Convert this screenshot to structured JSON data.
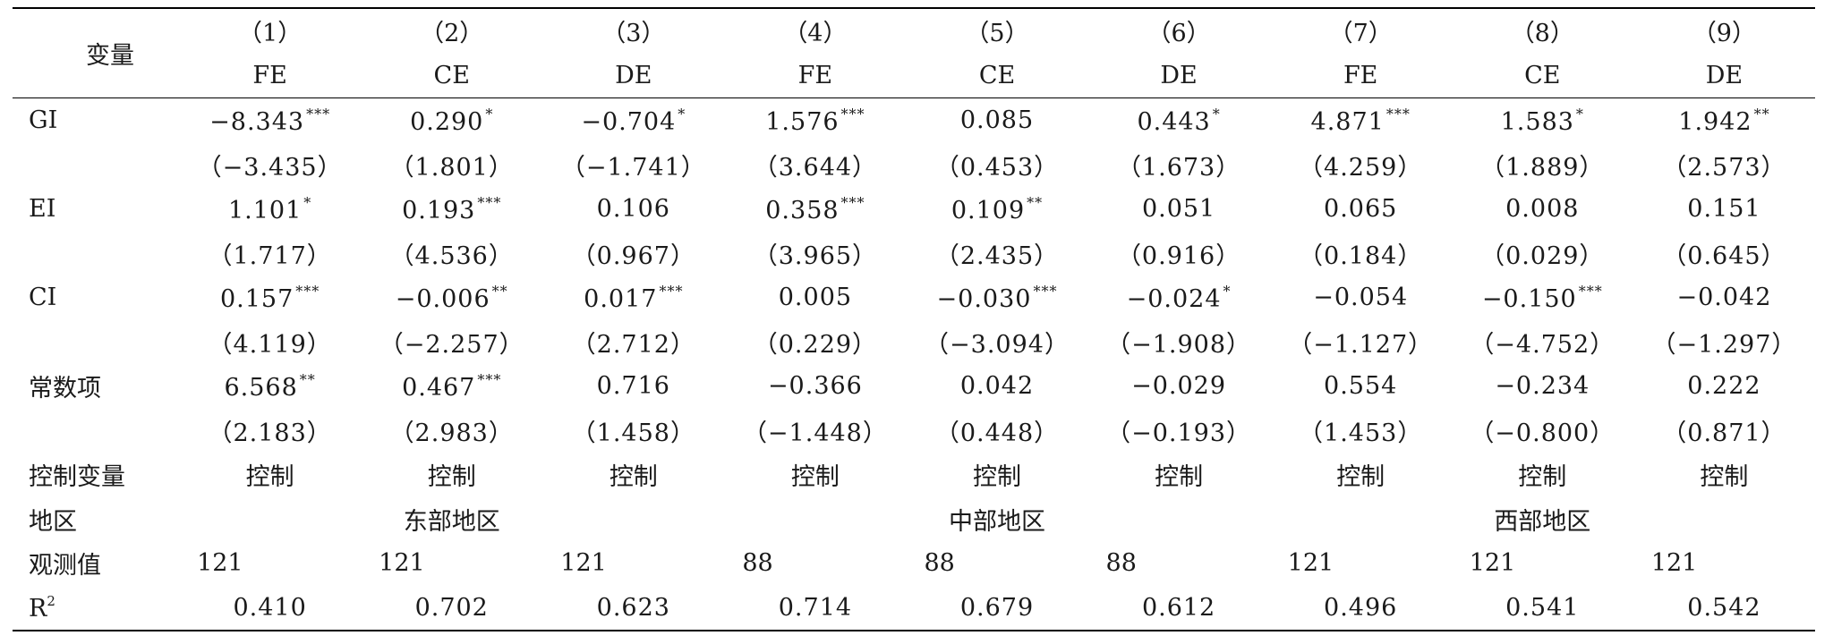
{
  "header": {
    "var_label": "变量",
    "columns": [
      {
        "num": "（1）",
        "type": "FE"
      },
      {
        "num": "（2）",
        "type": "CE"
      },
      {
        "num": "（3）",
        "type": "DE"
      },
      {
        "num": "（4）",
        "type": "FE"
      },
      {
        "num": "（5）",
        "type": "CE"
      },
      {
        "num": "（6）",
        "type": "DE"
      },
      {
        "num": "（7）",
        "type": "FE"
      },
      {
        "num": "（8）",
        "type": "CE"
      },
      {
        "num": "（9）",
        "type": "DE"
      }
    ]
  },
  "rows": [
    {
      "name": "GI",
      "coef": [
        {
          "v": "−8.343",
          "s": "***"
        },
        {
          "v": "0.290",
          "s": "*"
        },
        {
          "v": "−0.704",
          "s": "*"
        },
        {
          "v": "1.576",
          "s": "***"
        },
        {
          "v": "0.085",
          "s": ""
        },
        {
          "v": "0.443",
          "s": "*"
        },
        {
          "v": "4.871",
          "s": "***"
        },
        {
          "v": "1.583",
          "s": "*"
        },
        {
          "v": "1.942",
          "s": "**"
        }
      ],
      "t": [
        "（−3.435）",
        "（1.801）",
        "（−1.741）",
        "（3.644）",
        "（0.453）",
        "（1.673）",
        "（4.259）",
        "（1.889）",
        "（2.573）"
      ]
    },
    {
      "name": "EI",
      "coef": [
        {
          "v": "1.101",
          "s": "*"
        },
        {
          "v": "0.193",
          "s": "***"
        },
        {
          "v": "0.106",
          "s": ""
        },
        {
          "v": "0.358",
          "s": "***"
        },
        {
          "v": "0.109",
          "s": "**"
        },
        {
          "v": "0.051",
          "s": ""
        },
        {
          "v": "0.065",
          "s": ""
        },
        {
          "v": "0.008",
          "s": ""
        },
        {
          "v": "0.151",
          "s": ""
        }
      ],
      "t": [
        "（1.717）",
        "（4.536）",
        "（0.967）",
        "（3.965）",
        "（2.435）",
        "（0.916）",
        "（0.184）",
        "（0.029）",
        "（0.645）"
      ]
    },
    {
      "name": "CI",
      "coef": [
        {
          "v": "0.157",
          "s": "***"
        },
        {
          "v": "−0.006",
          "s": "**"
        },
        {
          "v": "0.017",
          "s": "***"
        },
        {
          "v": "0.005",
          "s": ""
        },
        {
          "v": "−0.030",
          "s": "***"
        },
        {
          "v": "−0.024",
          "s": "*"
        },
        {
          "v": "−0.054",
          "s": ""
        },
        {
          "v": "−0.150",
          "s": "***"
        },
        {
          "v": "−0.042",
          "s": ""
        }
      ],
      "t": [
        "（4.119）",
        "（−2.257）",
        "（2.712）",
        "（0.229）",
        "（−3.094）",
        "（−1.908）",
        "（−1.127）",
        "（−4.752）",
        "（−1.297）"
      ]
    },
    {
      "name": "常数项",
      "coef": [
        {
          "v": "6.568",
          "s": "**"
        },
        {
          "v": "0.467",
          "s": "***"
        },
        {
          "v": "0.716",
          "s": ""
        },
        {
          "v": "−0.366",
          "s": ""
        },
        {
          "v": "0.042",
          "s": ""
        },
        {
          "v": "−0.029",
          "s": ""
        },
        {
          "v": "0.554",
          "s": ""
        },
        {
          "v": "−0.234",
          "s": ""
        },
        {
          "v": "0.222",
          "s": ""
        }
      ],
      "t": [
        "（2.183）",
        "（2.983）",
        "（1.458）",
        "（−1.448）",
        "（0.448）",
        "（−0.193）",
        "（1.453）",
        "（−0.800）",
        "（0.871）"
      ]
    }
  ],
  "controls": {
    "label": "控制变量",
    "values": [
      "控制",
      "控制",
      "控制",
      "控制",
      "控制",
      "控制",
      "控制",
      "控制",
      "控制"
    ]
  },
  "region": {
    "label": "地区",
    "groups": [
      "东部地区",
      "中部地区",
      "西部地区"
    ]
  },
  "observations": {
    "label": "观测值",
    "values": [
      "121",
      "121",
      "121",
      "88",
      "88",
      "88",
      "121",
      "121",
      "121"
    ]
  },
  "r2": {
    "label_main": "R",
    "label_sup": "2",
    "values": [
      "0.410",
      "0.702",
      "0.623",
      "0.714",
      "0.679",
      "0.612",
      "0.496",
      "0.541",
      "0.542"
    ]
  }
}
